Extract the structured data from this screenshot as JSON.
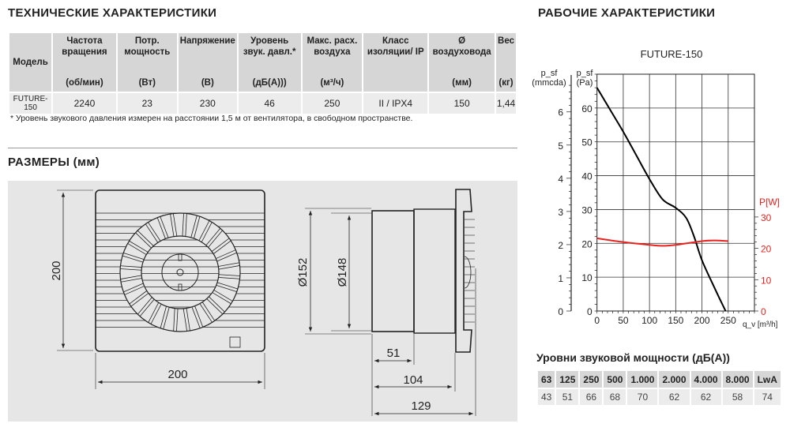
{
  "tech": {
    "title": "ТЕХНИЧЕСКИЕ ХАРАКТЕРИСТИКИ",
    "columns": [
      {
        "label": "Модель",
        "unit": ""
      },
      {
        "label": "Частота вращения",
        "unit": "(об/мин)"
      },
      {
        "label": "Потр. мощность",
        "unit": "(Вт)"
      },
      {
        "label": "Напряжение",
        "unit": "(В)"
      },
      {
        "label": "Уровень звук. давл.*",
        "unit": "(дБ(А)))"
      },
      {
        "label": "Макс. расх. воздуха",
        "unit": "(м³/ч)"
      },
      {
        "label": "Класс изоляции/ IP",
        "unit": ""
      },
      {
        "label": "Ø воздуховода",
        "unit": "(мм)"
      },
      {
        "label": "Вес",
        "unit": "(кг)"
      }
    ],
    "row": [
      "FUTURE-150",
      "2240",
      "23",
      "230",
      "46",
      "250",
      "II / IPX4",
      "150",
      "1,44"
    ],
    "footnote": "* Уровень звукового давления измерен на расстоянии 1,5 м от вентилятора, в свободном пространстве."
  },
  "dimensions": {
    "title": "РАЗМЕРЫ (мм)",
    "height": "200",
    "width": "200",
    "outer_diameter": "Ø152",
    "inner_diameter": "Ø148",
    "spigot_length": "51",
    "body_depth": "104",
    "total_depth": "129"
  },
  "performance": {
    "title": "РАБОЧИЕ ХАРАКТЕРИСТИКИ"
  },
  "chart_data": {
    "type": "line",
    "title": "FUTURE-150",
    "xlabel": "q_v [m³/h]",
    "ylabel": "p_sf (Pa)",
    "ylabel_secondary_left": "p_sf (mmcda)",
    "ylabel_right": "P[W]",
    "xlim": [
      0,
      300
    ],
    "ylim": [
      0,
      70
    ],
    "ylim_mmcda": [
      0,
      7.1
    ],
    "ylim_right": [
      0,
      35
    ],
    "x_ticks": [
      0,
      50,
      100,
      150,
      200,
      250
    ],
    "y_ticks": [
      0,
      10,
      20,
      30,
      40,
      50,
      60
    ],
    "y_ticks_mmcda": [
      0,
      1,
      2,
      3,
      4,
      5,
      6
    ],
    "y_ticks_right": [
      0,
      10,
      20,
      30
    ],
    "grid": true,
    "series": [
      {
        "axis": "left",
        "color": "#000000",
        "x": [
          0,
          25,
          50,
          75,
          100,
          125,
          150,
          170,
          185,
          200,
          225,
          245
        ],
        "y": [
          66,
          59.5,
          53,
          46,
          39,
          33,
          30.5,
          27.5,
          22,
          15,
          6.5,
          0
        ]
      },
      {
        "axis": "right",
        "color": "#e8231e",
        "x": [
          0,
          50,
          100,
          125,
          150,
          200,
          225,
          250
        ],
        "y": [
          23.2,
          22,
          21.1,
          20.8,
          21.1,
          22.3,
          22.5,
          22.3
        ]
      }
    ],
    "colors": {
      "power": "#e8231e"
    }
  },
  "sound": {
    "title": "Уровни звуковой мощности (дБ(А))",
    "headers": [
      "63",
      "125",
      "250",
      "500",
      "1.000",
      "2.000",
      "4.000",
      "8.000",
      "LwA"
    ],
    "values": [
      "43",
      "51",
      "66",
      "68",
      "70",
      "62",
      "62",
      "58",
      "74"
    ]
  }
}
